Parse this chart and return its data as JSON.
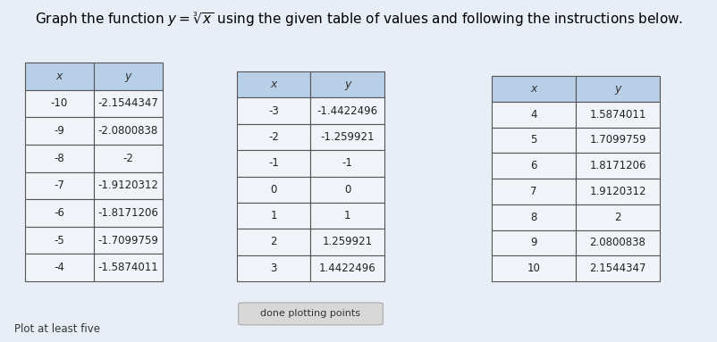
{
  "title": "Graph the function $y = \\sqrt[3]{x}$ using the given table of values and following the instructions below.",
  "table1": {
    "headers": [
      "x",
      "y"
    ],
    "rows": [
      [
        "-10",
        "-2.1544347"
      ],
      [
        "-9",
        "-2.0800838"
      ],
      [
        "-8",
        "-2"
      ],
      [
        "-7",
        "-1.9120312"
      ],
      [
        "-6",
        "-1.8171206"
      ],
      [
        "-5",
        "-1.7099759"
      ],
      [
        "-4",
        "-1.5874011"
      ]
    ]
  },
  "table2": {
    "headers": [
      "x",
      "y"
    ],
    "rows": [
      [
        "-3",
        "-1.4422496"
      ],
      [
        "-2",
        "-1.259921"
      ],
      [
        "-1",
        "-1"
      ],
      [
        "0",
        "0"
      ],
      [
        "1",
        "1"
      ],
      [
        "2",
        "1.259921"
      ],
      [
        "3",
        "1.4422496"
      ]
    ]
  },
  "table3": {
    "headers": [
      "x",
      "y"
    ],
    "rows": [
      [
        "4",
        "1.5874011"
      ],
      [
        "5",
        "1.7099759"
      ],
      [
        "6",
        "1.8171206"
      ],
      [
        "7",
        "1.9120312"
      ],
      [
        "8",
        "2"
      ],
      [
        "9",
        "2.0800838"
      ],
      [
        "10",
        "2.1544347"
      ]
    ]
  },
  "button_text": "done plotting points",
  "bottom_text": "Plot at least five",
  "header_bg": "#b8cfe8",
  "cell_bg": "#f0f4f8",
  "table_border": "#555555",
  "bg_color": "#e8eef5",
  "title_fontsize": 11,
  "cell_fontsize": 8.5,
  "header_fontsize": 9
}
